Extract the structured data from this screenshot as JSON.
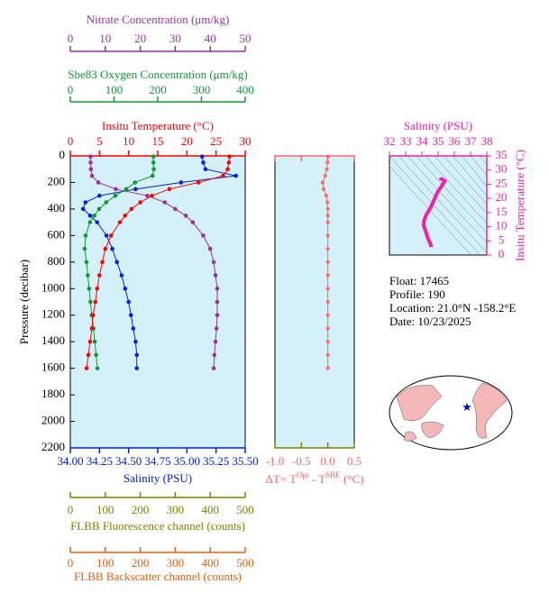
{
  "chart_data": [
    {
      "type": "profile",
      "ylabel": "Pressure (decibar)",
      "ylim": [
        0,
        2200
      ],
      "yticks": [
        0,
        200,
        400,
        600,
        800,
        1000,
        1200,
        1400,
        1600,
        1800,
        2000,
        2200
      ],
      "pressure": [
        5,
        50,
        100,
        150,
        200,
        250,
        300,
        350,
        400,
        450,
        500,
        600,
        700,
        800,
        900,
        1000,
        1100,
        1200,
        1300,
        1400,
        1500,
        1600
      ],
      "axes": [
        {
          "label": "Nitrate Concentration (μm/kg)",
          "color": "#993399",
          "xlim": [
            0,
            50
          ],
          "xticks": [
            0,
            10,
            20,
            30,
            40,
            50
          ],
          "values": [
            5.8,
            5.8,
            5.9,
            6.2,
            8,
            13,
            22,
            27,
            30,
            33,
            35,
            38,
            40,
            41,
            41.5,
            42,
            42,
            42,
            41.8,
            41.5,
            41.2,
            41
          ]
        },
        {
          "label": "Sbe83 Oxygen Concentration (μm/kg)",
          "color": "#119933",
          "xlim": [
            0,
            400
          ],
          "xticks": [
            0,
            100,
            200,
            300,
            400
          ],
          "values": [
            190,
            190,
            191,
            188,
            148,
            128,
            103,
            82,
            66,
            55,
            45,
            35,
            33,
            37,
            40,
            43,
            46,
            49,
            53,
            56,
            59,
            62
          ]
        },
        {
          "label": "Insitu Temperature (°C)",
          "color": "#ff0000",
          "xlim": [
            0,
            30
          ],
          "xticks": [
            0,
            5,
            10,
            15,
            20,
            25,
            30
          ],
          "values": [
            27.3,
            27.2,
            27.0,
            26.2,
            22.0,
            17.0,
            14.0,
            12.0,
            10.5,
            9.4,
            8.5,
            7.0,
            6.0,
            5.5,
            5.0,
            4.6,
            4.3,
            3.9,
            3.7,
            3.4,
            3.1,
            2.8
          ]
        },
        {
          "label": "Salinity (PSU)",
          "color": "#0022dd",
          "xlim": [
            34,
            35.5
          ],
          "xticks": [
            {
              "value": 34,
              "label": "34.00"
            },
            {
              "value": 34.25,
              "label": "34.25"
            },
            {
              "value": 34.5,
              "label": "34.50"
            },
            {
              "value": 34.75,
              "label": "34.75"
            },
            {
              "value": 35,
              "label": "35.00"
            },
            {
              "value": 35.25,
              "label": "35.25"
            },
            {
              "value": 35.5,
              "label": "35.50"
            }
          ],
          "values": [
            35.13,
            35.14,
            35.16,
            35.42,
            34.95,
            34.56,
            34.25,
            34.13,
            34.11,
            34.17,
            34.23,
            34.31,
            34.36,
            34.4,
            34.44,
            34.47,
            34.5,
            34.52,
            34.54,
            34.56,
            34.57,
            34.57
          ]
        },
        {
          "label": "FLBB Fluorescence channel (counts)",
          "color": "#808000",
          "xlim": [
            0,
            500
          ],
          "xticks": [
            0,
            100,
            200,
            300,
            400,
            500
          ]
        },
        {
          "label": "FLBB Backscatter channel (counts)",
          "color": "#e06010",
          "xlim": [
            0,
            500
          ],
          "xticks": [
            0,
            100,
            200,
            300,
            400,
            500
          ]
        }
      ]
    },
    {
      "type": "delta",
      "xlabel": [
        "ΔT= T",
        "Opt",
        " - T",
        "SBE",
        " (°C)"
      ],
      "color": "#ff6666",
      "xlim": [
        -1,
        0.5
      ],
      "xticks": [
        {
          "value": -1,
          "label": "-1.0"
        },
        {
          "value": -0.5,
          "label": "-0.5"
        },
        {
          "value": 0,
          "label": "0.0"
        },
        {
          "value": 0.5,
          "label": "0.5"
        }
      ],
      "values": [
        0,
        -0.01,
        -0.02,
        -0.05,
        -0.1,
        -0.08,
        -0.03,
        -0.01,
        0,
        0,
        0,
        0,
        0,
        0,
        0,
        0,
        0,
        0,
        0,
        0,
        0,
        0
      ]
    },
    {
      "type": "ts",
      "title": "Salinity (PSU)",
      "ylabel": "Insitu Temperature (°C)",
      "color": "#ee22aa",
      "xlim": [
        32,
        38
      ],
      "xticks": [
        32,
        33,
        34,
        35,
        36,
        37,
        38
      ],
      "ylim": [
        0,
        35
      ],
      "yticks": [
        0,
        5,
        10,
        15,
        20,
        25,
        30,
        35
      ]
    }
  ],
  "info": [
    "Float:  17465",
    "Profile:  190",
    "Location:  21.0°N  -158.2°E",
    "Date:  10/23/2025"
  ]
}
